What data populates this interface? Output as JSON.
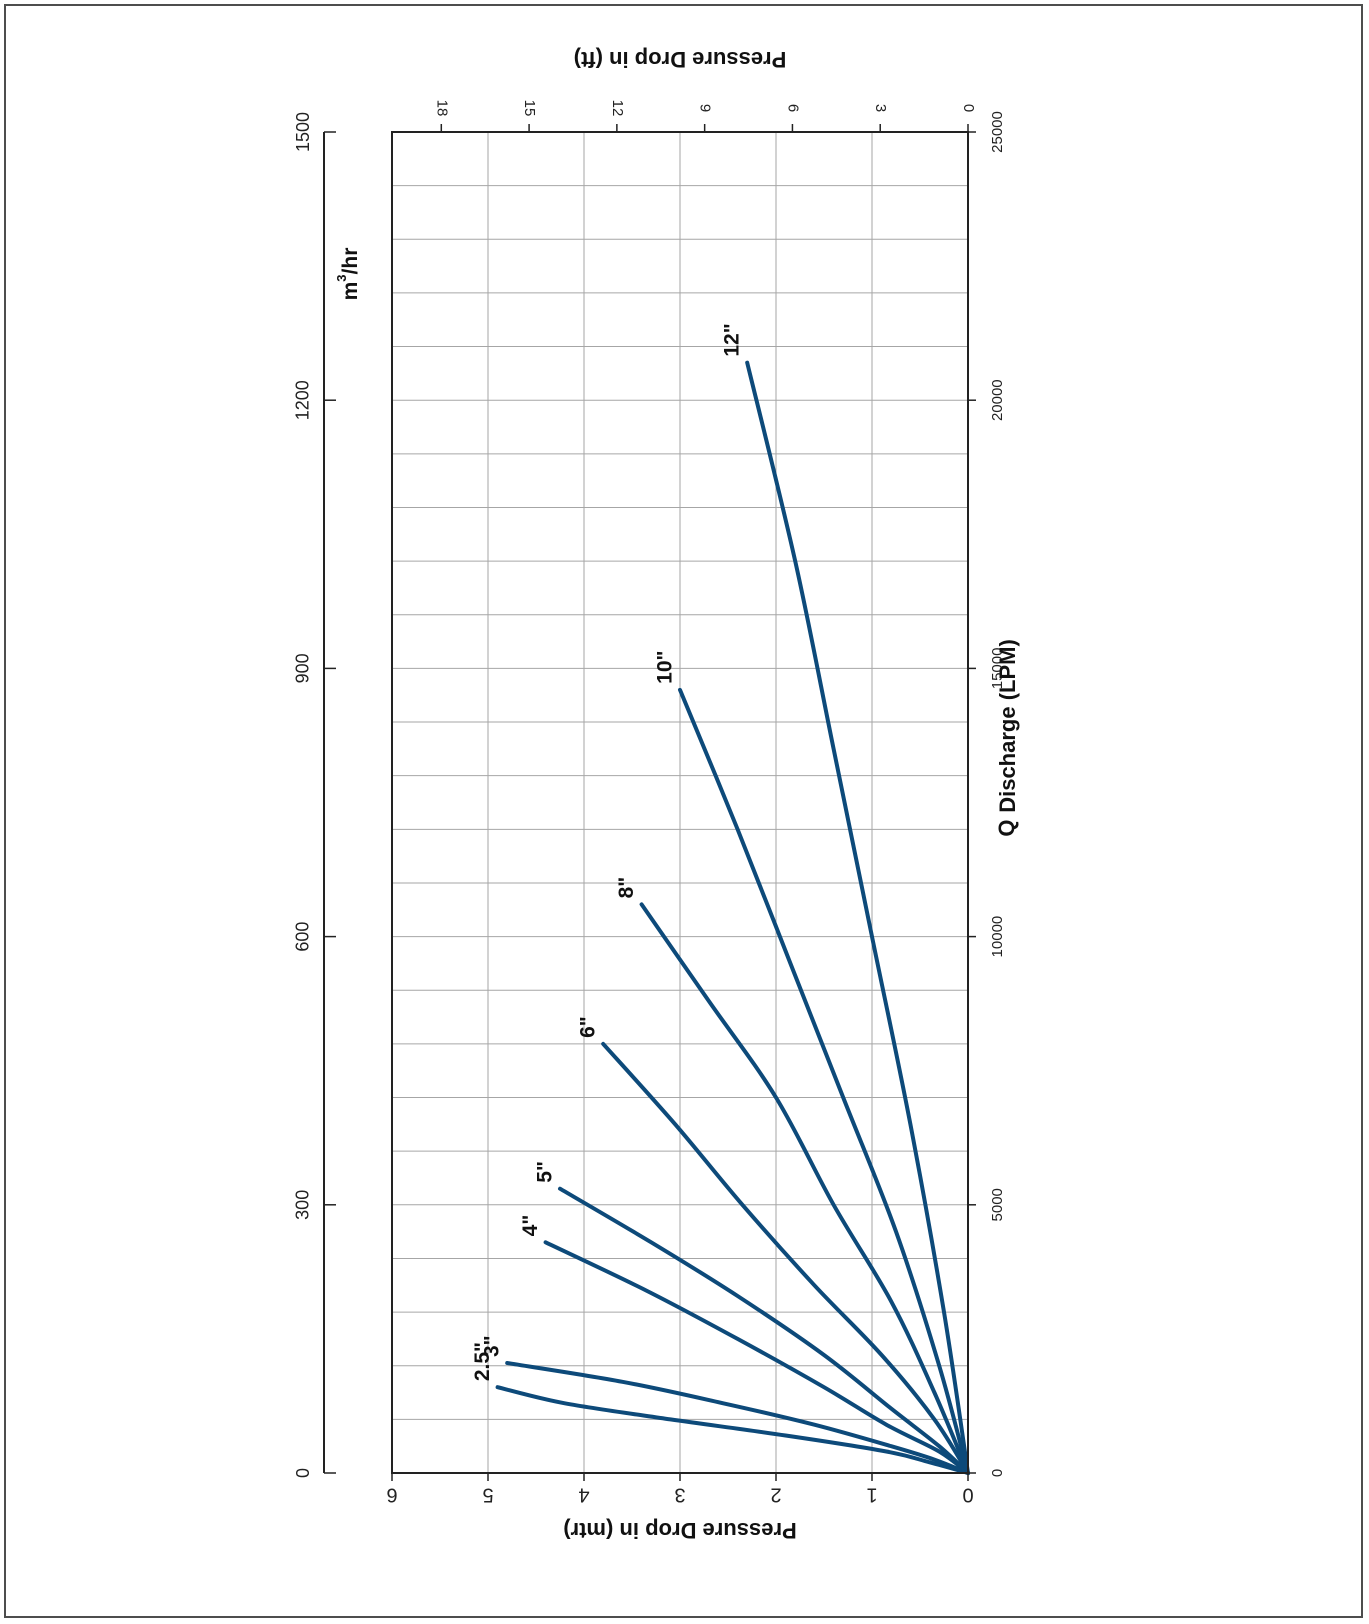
{
  "chart_data": {
    "type": "line",
    "orientation": "rotated-90-clockwise",
    "x_axis": {
      "label": "Discharge (LPM)",
      "symbol": "Q",
      "min": 0,
      "max": 25000,
      "ticks": [
        "0",
        "5000",
        "10000",
        "15000",
        "20000",
        "25000"
      ],
      "minor_step": 1000
    },
    "x2_axis": {
      "label": "m³/hr",
      "label_base": "m",
      "label_sup": "3",
      "label_rest": "/hr",
      "min": 0,
      "max": 1500,
      "ticks": [
        "0",
        "300",
        "600",
        "900",
        "1200",
        "1500"
      ]
    },
    "y_axis": {
      "label": "Pressure Drop in (mtr)",
      "min": 0,
      "max": 6,
      "ticks": [
        "0",
        "1",
        "2",
        "3",
        "4",
        "5",
        "6"
      ]
    },
    "y2_axis": {
      "label": "Pressure Drop in (ft)",
      "min": 0,
      "max": 19.685,
      "ticks": [
        "0",
        "3",
        "6",
        "9",
        "12",
        "15",
        "18"
      ]
    },
    "grid": true,
    "line_color": "#0d4a7a",
    "series": [
      {
        "name": "2.5\"",
        "x": [
          0,
          200,
          400,
          700,
          1000,
          1300,
          1600
        ],
        "y": [
          0,
          0.4,
          0.85,
          1.9,
          3.1,
          4.2,
          4.9
        ]
      },
      {
        "name": "3\"",
        "x": [
          0,
          250,
          500,
          900,
          1300,
          1700,
          2050
        ],
        "y": [
          0,
          0.35,
          0.8,
          1.6,
          2.55,
          3.6,
          4.8
        ]
      },
      {
        "name": "4\"",
        "x": [
          0,
          400,
          900,
          1600,
          2500,
          3400,
          4300
        ],
        "y": [
          0,
          0.3,
          0.85,
          1.5,
          2.4,
          3.35,
          4.4
        ]
      },
      {
        "name": "5\"",
        "x": [
          0,
          500,
          1200,
          2200,
          3300,
          4300,
          5300
        ],
        "y": [
          0,
          0.3,
          0.8,
          1.5,
          2.4,
          3.3,
          4.25
        ]
      },
      {
        "name": "6\"",
        "x": [
          0,
          1000,
          2200,
          3500,
          5000,
          6500,
          8000
        ],
        "y": [
          0,
          0.35,
          0.9,
          1.6,
          2.35,
          3.05,
          3.8
        ]
      },
      {
        "name": "8\"",
        "x": [
          0,
          1500,
          3200,
          5000,
          7000,
          8800,
          10600
        ],
        "y": [
          0,
          0.35,
          0.8,
          1.4,
          2.0,
          2.7,
          3.4
        ]
      },
      {
        "name": "10\"",
        "x": [
          0,
          2000,
          4500,
          7000,
          9500,
          12000,
          14600
        ],
        "y": [
          0,
          0.3,
          0.75,
          1.3,
          1.85,
          2.4,
          3.0
        ]
      },
      {
        "name": "12\"",
        "x": [
          0,
          3000,
          6500,
          10000,
          13500,
          17000,
          20700
        ],
        "y": [
          0,
          0.25,
          0.6,
          1.0,
          1.4,
          1.8,
          2.3
        ]
      }
    ]
  }
}
